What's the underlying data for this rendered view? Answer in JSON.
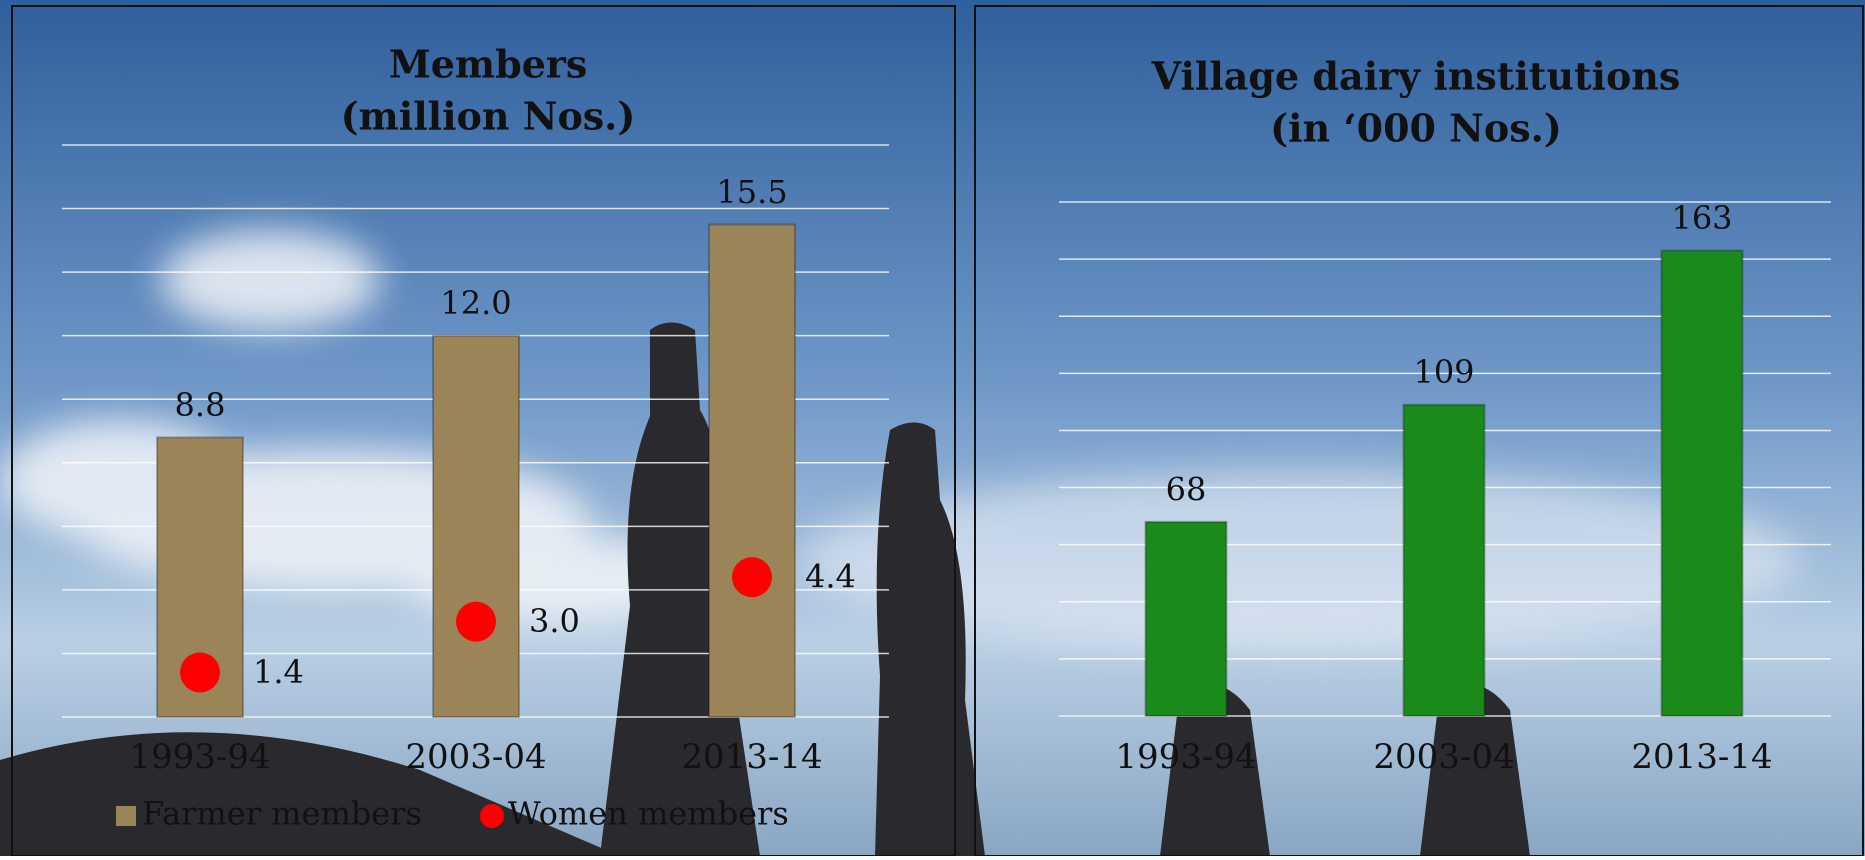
{
  "chart_data": [
    {
      "type": "bar",
      "title": [
        "Members",
        "(million Nos.)"
      ],
      "categories": [
        "1993-94",
        "2003-04",
        "2013-14"
      ],
      "series": [
        {
          "name": "Farmer members",
          "type": "bar",
          "color": "#9b8458",
          "values": [
            8.8,
            12,
            15.5
          ],
          "value_labels": [
            "8.8",
            "12.0",
            "15.5"
          ]
        },
        {
          "name": "Women members",
          "type": "scatter",
          "color": "#ff0000",
          "values": [
            1.4,
            3,
            4.4
          ],
          "value_labels": [
            "1.4",
            "3.0",
            "4.4"
          ]
        }
      ],
      "ylim": [
        0,
        18
      ],
      "yticks": [
        0,
        2,
        4,
        6,
        8,
        10,
        12,
        14,
        16,
        18
      ],
      "grid": true,
      "legend": "bottom"
    },
    {
      "type": "bar",
      "title": [
        "Village dairy institutions",
        "(in ‘000 Nos.)"
      ],
      "categories": [
        "1993-94",
        "2003-04",
        "2013-14"
      ],
      "series": [
        {
          "type": "bar",
          "color": "#1a8a1a",
          "values": [
            68,
            109,
            163
          ]
        }
      ],
      "ylim": [
        0,
        180
      ],
      "yticks": [
        0,
        20,
        40,
        60,
        80,
        100,
        120,
        140,
        160,
        180
      ],
      "grid": true
    }
  ]
}
